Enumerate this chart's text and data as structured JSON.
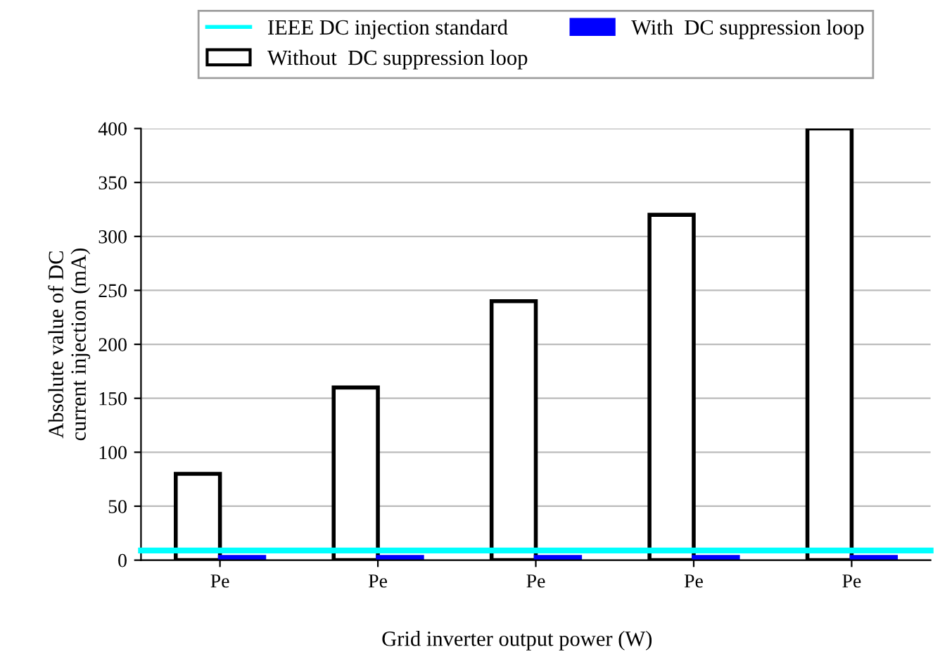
{
  "chart_data": {
    "type": "bar",
    "xlabel": "Grid inverter output power (W)",
    "ylabel": "Absolute value of DC\ncurrent injection (mA)",
    "categories": [
      "Pe",
      "Pe",
      "Pe",
      "Pe",
      "Pe"
    ],
    "series": [
      {
        "name": "Without  DC suppression loop",
        "color": "#ffffff",
        "values": [
          80,
          160,
          240,
          320,
          400
        ]
      },
      {
        "name": "With  DC suppression loop",
        "color": "#0000ff",
        "values": [
          3,
          3,
          3,
          3,
          3
        ]
      }
    ],
    "ref_lines": [
      {
        "axis": "y",
        "value": 9,
        "label": "IEEE DC injection standard",
        "color": "#00ffff",
        "line_style": "solid"
      }
    ],
    "ylim": [
      0,
      400
    ],
    "yticks": [
      0,
      50,
      100,
      150,
      200,
      250,
      300,
      350,
      400
    ],
    "grid": "y",
    "legend": "top"
  }
}
